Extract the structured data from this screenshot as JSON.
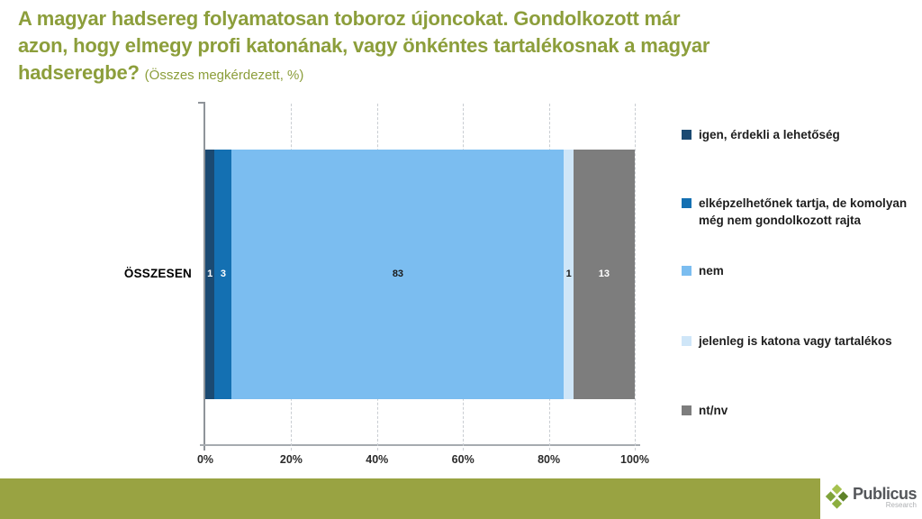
{
  "title": {
    "lines": [
      "A magyar hadsereg folyamatosan toboroz újoncokat. Gondolkozott már",
      "azon, hogy elmegy profi katonának, vagy önkéntes tartalékosnak a magyar",
      "hadseregbe?"
    ],
    "subtitle": "(Összes megkérdezett, %)"
  },
  "chart_data": {
    "type": "bar",
    "orientation": "horizontal",
    "stacked": true,
    "categories": [
      "ÖSSZESEN"
    ],
    "series": [
      {
        "name": "igen, érdekli a lehetőség",
        "value": 1,
        "color": "#1B4A72",
        "label_color": "#FFFFFF"
      },
      {
        "name": "elképzelhetőnek tartja, de komolyan még nem gondolkozott rajta",
        "value": 3,
        "color": "#1470B2",
        "label_color": "#FFFFFF"
      },
      {
        "name": "nem",
        "value": 83,
        "color": "#7BBDF0",
        "label_color": "#1A1A1A"
      },
      {
        "name": "jelenleg is katona vagy tartalékos",
        "value": 1,
        "color": "#CFE6F8",
        "label_color": "#1A1A1A"
      },
      {
        "name": "nt/nv",
        "value": 13,
        "color": "#7D7D7D",
        "label_color": "#FFFFFF"
      }
    ],
    "x_ticks": [
      {
        "label": "0%",
        "pct": 0
      },
      {
        "label": "20%",
        "pct": 20
      },
      {
        "label": "40%",
        "pct": 40
      },
      {
        "label": "60%",
        "pct": 60
      },
      {
        "label": "80%",
        "pct": 80
      },
      {
        "label": "100%",
        "pct": 100
      }
    ],
    "xlim": [
      0,
      100
    ],
    "grid": "vertical-dashed",
    "legend_position": "right",
    "xlabel": "",
    "ylabel": ""
  },
  "footer": {
    "brand": "Publicus",
    "brand_sub": "Research"
  },
  "colors": {
    "title_green": "#8C9E3B",
    "band_green": "#99A342",
    "axis_gray": "#8F9499",
    "gridline_gray": "#C9CDD2"
  }
}
